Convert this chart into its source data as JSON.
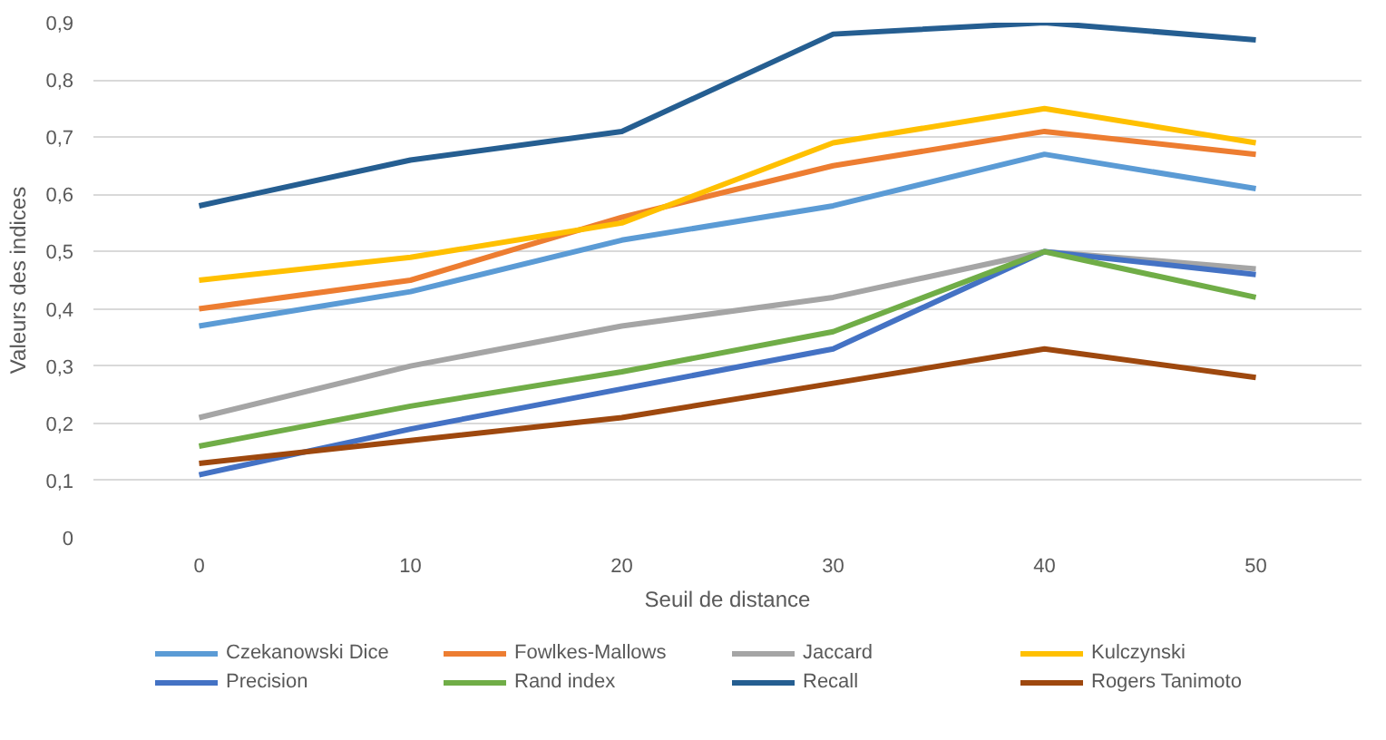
{
  "chart_data": {
    "type": "line",
    "xlabel": "Seuil de distance",
    "ylabel": "Valeurs des indices",
    "x": [
      0,
      10,
      20,
      30,
      40,
      50
    ],
    "xlim": [
      -5,
      55
    ],
    "xticks": [
      0,
      10,
      20,
      30,
      40,
      50
    ],
    "ylim": [
      0,
      0.9
    ],
    "yticks": [
      {
        "value": 0,
        "label": "0"
      },
      {
        "value": 0.1,
        "label": "0,1"
      },
      {
        "value": 0.2,
        "label": "0,2"
      },
      {
        "value": 0.3,
        "label": "0,3"
      },
      {
        "value": 0.4,
        "label": "0,4"
      },
      {
        "value": 0.5,
        "label": "0,5"
      },
      {
        "value": 0.6,
        "label": "0,6"
      },
      {
        "value": 0.7,
        "label": "0,7"
      },
      {
        "value": 0.8,
        "label": "0,8"
      },
      {
        "value": 0.9,
        "label": "0,9"
      }
    ],
    "grid": "y",
    "legend": "bottom",
    "marker": "none",
    "line_style": "solid",
    "series": [
      {
        "name": "Czekanowski Dice",
        "color": "#5b9bd5",
        "values": [
          0.37,
          0.43,
          0.52,
          0.58,
          0.67,
          0.61
        ]
      },
      {
        "name": "Fowlkes-Mallows",
        "color": "#ed7d31",
        "values": [
          0.4,
          0.45,
          0.56,
          0.65,
          0.71,
          0.67
        ]
      },
      {
        "name": "Jaccard",
        "color": "#a5a5a5",
        "values": [
          0.21,
          0.3,
          0.37,
          0.42,
          0.5,
          0.47
        ]
      },
      {
        "name": "Kulczynski",
        "color": "#ffc000",
        "values": [
          0.45,
          0.49,
          0.55,
          0.69,
          0.75,
          0.69
        ]
      },
      {
        "name": "Precision",
        "color": "#4472c4",
        "values": [
          0.11,
          0.19,
          0.26,
          0.33,
          0.5,
          0.46
        ]
      },
      {
        "name": "Rand index",
        "color": "#70ad47",
        "values": [
          0.16,
          0.23,
          0.29,
          0.36,
          0.5,
          0.42
        ]
      },
      {
        "name": "Recall",
        "color": "#255e91",
        "values": [
          0.58,
          0.66,
          0.71,
          0.88,
          0.9,
          0.87
        ]
      },
      {
        "name": "Rogers Tanimoto",
        "color": "#9e480e",
        "values": [
          0.13,
          0.17,
          0.21,
          0.27,
          0.33,
          0.28
        ]
      }
    ]
  }
}
